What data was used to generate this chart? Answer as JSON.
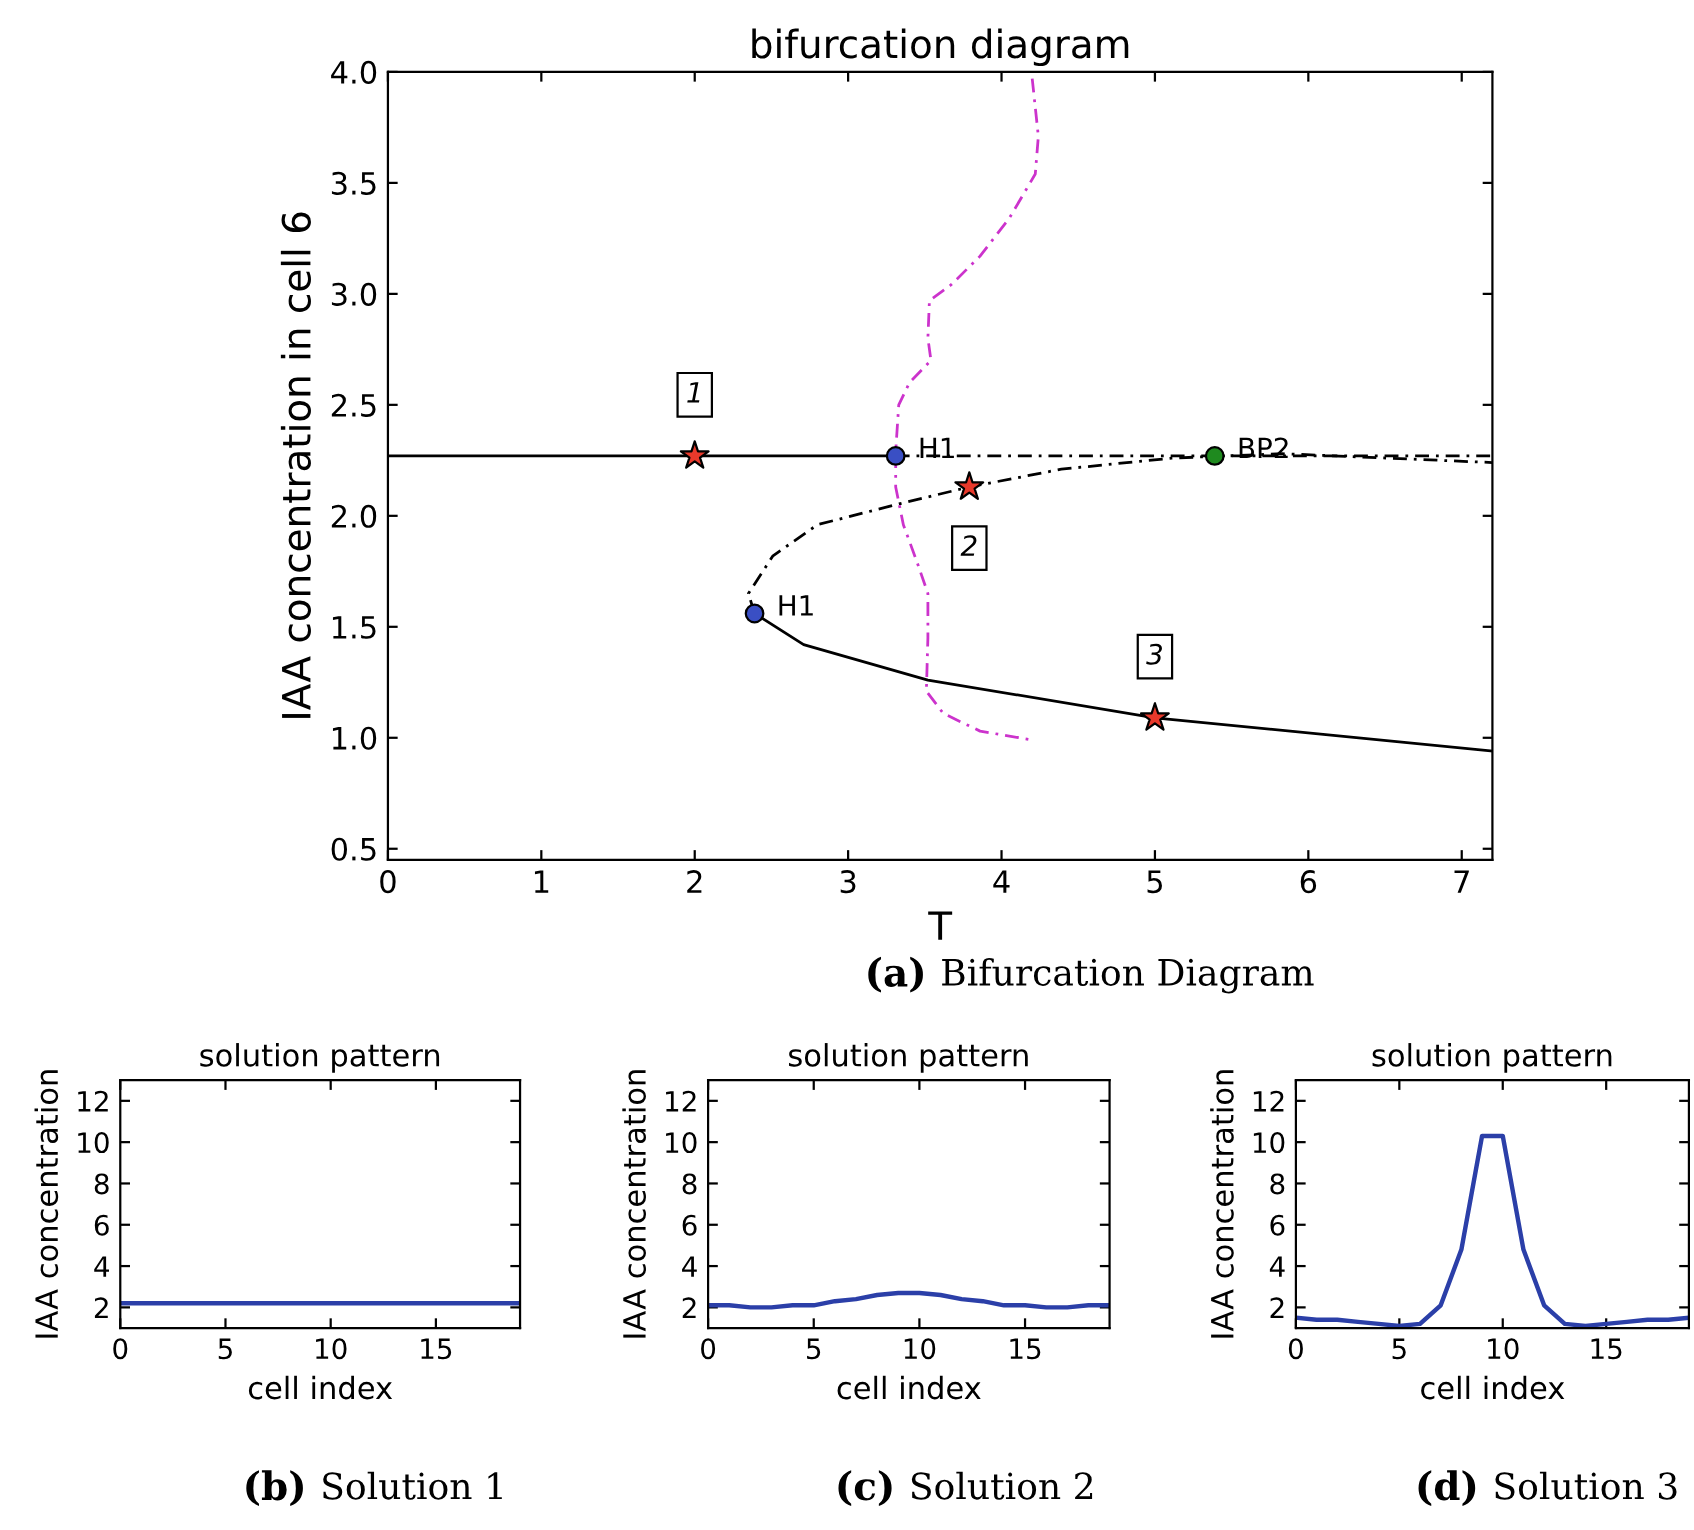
{
  "chart_data": [
    {
      "type": "line",
      "title": "bifurcation diagram",
      "xlabel": "T",
      "ylabel": "IAA concentration in cell 6",
      "xlim": [
        0,
        7.2
      ],
      "ylim": [
        0.45,
        4.0
      ],
      "xticks": [
        0,
        1,
        2,
        3,
        4,
        5,
        6,
        7
      ],
      "yticks": [
        {
          "value": 0.5,
          "label": "0.5"
        },
        {
          "value": 1,
          "label": "1.0"
        },
        {
          "value": 1.5,
          "label": "1.5"
        },
        {
          "value": 2,
          "label": "2.0"
        },
        {
          "value": 2.5,
          "label": "2.5"
        },
        {
          "value": 3,
          "label": "3.0"
        },
        {
          "value": 3.5,
          "label": "3.5"
        },
        {
          "value": 4,
          "label": "4.0"
        }
      ],
      "grid": false,
      "legend": false,
      "series": [
        {
          "type": "line",
          "color": "#000000",
          "line_style": "solid",
          "marker": "none",
          "x": [
            0,
            3.31
          ],
          "values": [
            2.27,
            2.27
          ]
        },
        {
          "type": "line",
          "color": "#000000",
          "line_style": "dashed",
          "marker": "none",
          "x": [
            3.31,
            7.2
          ],
          "values": [
            2.27,
            2.27
          ]
        },
        {
          "type": "line",
          "color": "#000000",
          "line_style": "dashed",
          "marker": "none",
          "x": [
            2.39,
            2.35,
            2.51,
            2.8,
            3.31,
            3.79,
            4.39,
            5.11,
            5.83,
            7.2
          ],
          "values": [
            1.56,
            1.65,
            1.82,
            1.96,
            2.05,
            2.13,
            2.21,
            2.26,
            2.28,
            2.24
          ]
        },
        {
          "type": "line",
          "color": "#000000",
          "line_style": "solid",
          "marker": "none",
          "x": [
            2.39,
            2.71,
            3.52,
            5.0,
            7.2
          ],
          "values": [
            1.56,
            1.42,
            1.26,
            1.09,
            0.94
          ]
        },
        {
          "type": "line",
          "color": "#cc33cc",
          "line_style": "dashed",
          "marker": "none",
          "x": [
            4.2,
            4.24,
            4.22,
            4.05,
            3.86,
            3.67,
            3.53,
            3.52,
            3.54,
            3.4,
            3.33,
            3.31,
            3.31,
            3.36,
            3.45,
            3.52,
            3.52,
            3.51,
            3.62,
            3.86,
            4.2
          ],
          "values": [
            3.97,
            3.71,
            3.54,
            3.34,
            3.17,
            3.04,
            2.97,
            2.8,
            2.7,
            2.6,
            2.5,
            2.29,
            2.13,
            1.96,
            1.79,
            1.65,
            1.45,
            1.21,
            1.11,
            1.03,
            0.99
          ]
        },
        {
          "type": "scatter",
          "marker": "star",
          "x": [
            2.0,
            3.79,
            5.0
          ],
          "values": [
            2.27,
            2.13,
            1.09
          ],
          "colors": [
            "#e8392b",
            "#e8392b",
            "#e8392b"
          ]
        },
        {
          "type": "scatter",
          "marker": "circle",
          "x": [
            3.31,
            2.39,
            5.39
          ],
          "values": [
            2.27,
            1.56,
            2.27
          ],
          "colors": [
            "#3a4fc4",
            "#3a4fc4",
            "#1f8a1f"
          ]
        }
      ],
      "annotations": [
        {
          "text": "H1",
          "x": 3.31,
          "y": 2.27
        },
        {
          "text": "H1",
          "x": 2.39,
          "y": 1.56
        },
        {
          "text": "BP2",
          "x": 5.39,
          "y": 2.27
        },
        {
          "text": "1",
          "x": 2.0,
          "y": 2.27
        },
        {
          "text": "2",
          "x": 3.79,
          "y": 2.13
        },
        {
          "text": "3",
          "x": 5.0,
          "y": 1.09
        },
        "(a) Bifurcation Diagram"
      ]
    },
    {
      "type": "line",
      "title": "solution pattern",
      "xlabel": "cell index",
      "ylabel": "IAA concentration",
      "xlim": [
        0,
        19
      ],
      "ylim": [
        1,
        13
      ],
      "xticks": [
        0,
        5,
        10,
        15
      ],
      "yticks": [
        2,
        4,
        6,
        8,
        10,
        12
      ],
      "grid": false,
      "legend": false,
      "series": [
        {
          "color": "#2b3fa8",
          "x": [
            0,
            1,
            2,
            3,
            4,
            5,
            6,
            7,
            8,
            9,
            10,
            11,
            12,
            13,
            14,
            15,
            16,
            17,
            18,
            19
          ],
          "values": [
            2.2,
            2.2,
            2.2,
            2.2,
            2.2,
            2.2,
            2.2,
            2.2,
            2.2,
            2.2,
            2.2,
            2.2,
            2.2,
            2.2,
            2.2,
            2.2,
            2.2,
            2.2,
            2.2,
            2.2
          ]
        }
      ],
      "annotations": [
        "(b) Solution 1"
      ]
    },
    {
      "type": "line",
      "title": "solution pattern",
      "xlabel": "cell index",
      "ylabel": "IAA concentration",
      "xlim": [
        0,
        19
      ],
      "ylim": [
        1,
        13
      ],
      "xticks": [
        0,
        5,
        10,
        15
      ],
      "yticks": [
        2,
        4,
        6,
        8,
        10,
        12
      ],
      "grid": false,
      "legend": false,
      "series": [
        {
          "color": "#2b3fa8",
          "x": [
            0,
            1,
            2,
            3,
            4,
            5,
            6,
            7,
            8,
            9,
            10,
            11,
            12,
            13,
            14,
            15,
            16,
            17,
            18,
            19
          ],
          "values": [
            2.1,
            2.1,
            2.0,
            2.0,
            2.1,
            2.1,
            2.3,
            2.4,
            2.6,
            2.7,
            2.7,
            2.6,
            2.4,
            2.3,
            2.1,
            2.1,
            2.0,
            2.0,
            2.1,
            2.1
          ]
        }
      ],
      "annotations": [
        "(c) Solution 2"
      ]
    },
    {
      "type": "line",
      "title": "solution pattern",
      "xlabel": "cell index",
      "ylabel": "IAA concentration",
      "xlim": [
        0,
        19
      ],
      "ylim": [
        1,
        13
      ],
      "xticks": [
        0,
        5,
        10,
        15
      ],
      "yticks": [
        2,
        4,
        6,
        8,
        10,
        12
      ],
      "grid": false,
      "legend": false,
      "series": [
        {
          "color": "#2b3fa8",
          "x": [
            0,
            1,
            2,
            3,
            4,
            5,
            6,
            7,
            8,
            9,
            10,
            11,
            12,
            13,
            14,
            15,
            16,
            17,
            18,
            19
          ],
          "values": [
            1.5,
            1.4,
            1.4,
            1.3,
            1.2,
            1.1,
            1.2,
            2.1,
            4.8,
            10.3,
            10.3,
            4.8,
            2.1,
            1.2,
            1.1,
            1.2,
            1.3,
            1.4,
            1.4,
            1.5
          ]
        }
      ],
      "annotations": [
        "(d) Solution 3"
      ]
    }
  ]
}
